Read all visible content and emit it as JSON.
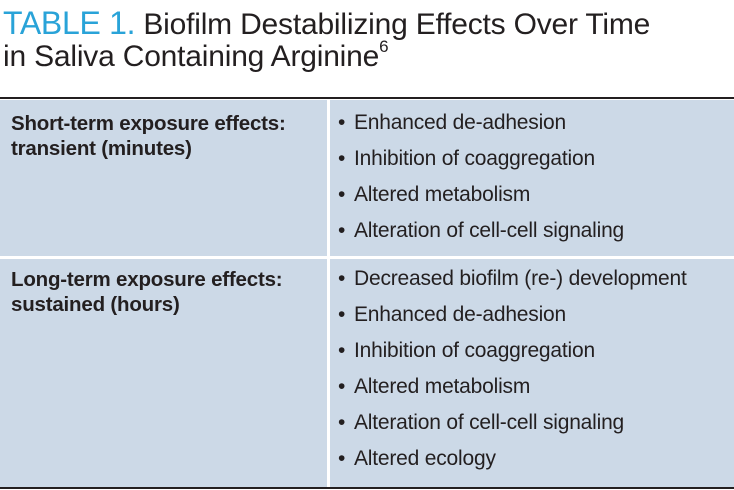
{
  "title": {
    "label": "TABLE 1.",
    "line1": "Biofilm Destabilizing Effects Over Time",
    "line2": "in Saliva Containing Arginine",
    "superscript": "6"
  },
  "colors": {
    "label": "#29a3d8",
    "cell_background": "#ccd9e7",
    "text": "#231f20",
    "rule": "#231f20"
  },
  "bullet_glyph": "•",
  "rows": [
    {
      "header_line1": "Short-term exposure effects:",
      "header_line2": "transient (minutes)",
      "items": [
        "Enhanced de-adhesion",
        "Inhibition of coaggregation",
        "Altered metabolism",
        "Alteration of cell-cell signaling"
      ]
    },
    {
      "header_line1": "Long-term exposure effects:",
      "header_line2": "sustained (hours)",
      "items": [
        "Decreased biofilm (re-) development",
        "Enhanced de-adhesion",
        "Inhibition of coaggregation",
        "Altered metabolism",
        "Alteration of cell-cell signaling",
        "Altered ecology"
      ]
    }
  ]
}
